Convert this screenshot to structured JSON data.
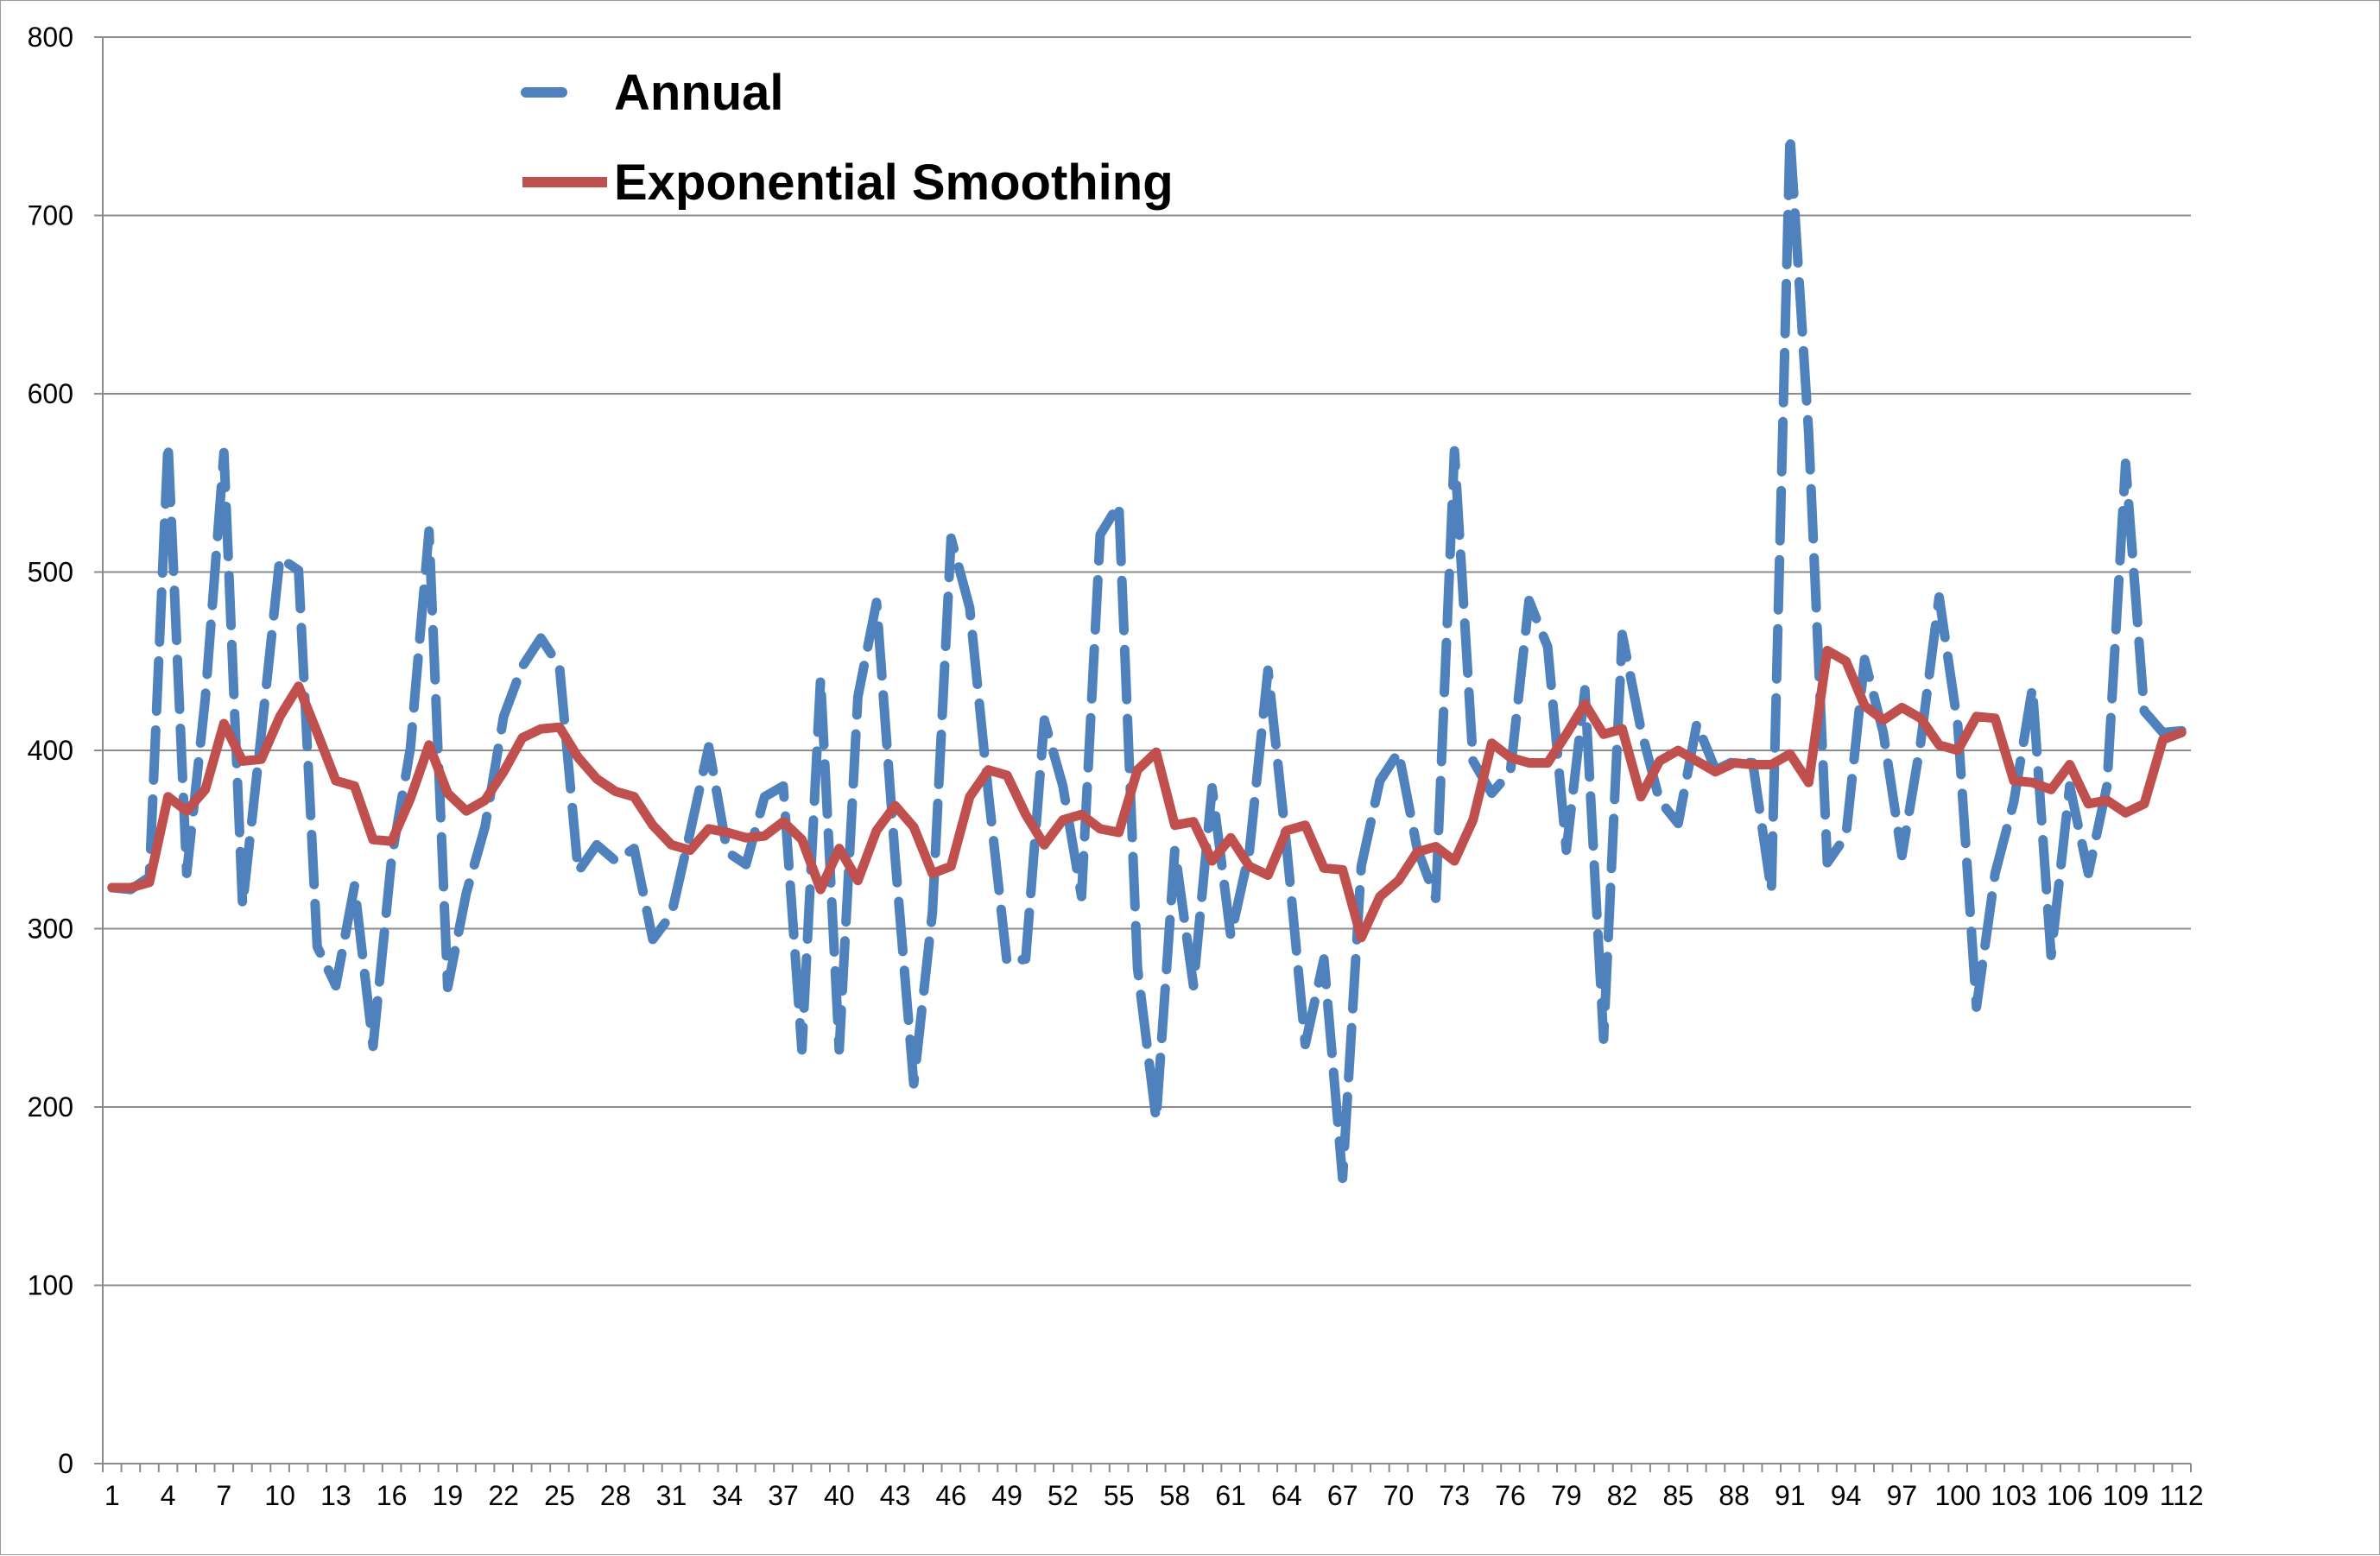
{
  "chart_data": {
    "type": "line",
    "title": "",
    "xlabel": "",
    "ylabel": "",
    "ylim": [
      0,
      800
    ],
    "y_ticks": [
      0,
      100,
      200,
      300,
      400,
      500,
      600,
      700,
      800
    ],
    "x_tick_labels": [
      "1",
      "4",
      "7",
      "10",
      "13",
      "16",
      "19",
      "22",
      "25",
      "28",
      "31",
      "34",
      "37",
      "40",
      "43",
      "46",
      "49",
      "52",
      "55",
      "58",
      "61",
      "64",
      "67",
      "70",
      "73",
      "76",
      "79",
      "82",
      "85",
      "88",
      "91",
      "94",
      "97",
      "100",
      "103",
      "106",
      "109",
      "112"
    ],
    "x_label_every": 3,
    "grid": "horizontal",
    "legend_position": "top-left",
    "series": [
      {
        "name": "Annual",
        "color": "#4F81BD",
        "style": "dashed",
        "values": [
          323,
          322,
          329,
          572,
          331,
          429,
          567,
          313,
          409,
          508,
          501,
          290,
          268,
          324,
          234,
          340,
          401,
          523,
          267,
          320,
          357,
          419,
          447,
          463,
          447,
          332,
          347,
          338,
          345,
          294,
          308,
          354,
          402,
          343,
          336,
          374,
          380,
          232,
          440,
          232,
          430,
          483,
          340,
          213,
          309,
          519,
          480,
          376,
          281,
          283,
          417,
          380,
          318,
          521,
          538,
          278,
          193,
          344,
          268,
          379,
          296,
          343,
          445,
          346,
          235,
          283,
          160,
          335,
          383,
          399,
          345,
          317,
          568,
          394,
          376,
          388,
          484,
          458,
          344,
          434,
          238,
          465,
          412,
          372,
          359,
          415,
          389,
          394,
          393,
          321,
          745,
          578,
          337,
          352,
          451,
          410,
          341,
          404,
          486,
          414,
          256,
          331,
          371,
          435,
          285,
          380,
          331,
          380,
          561,
          422,
          410,
          411
        ]
      },
      {
        "name": "Exponential Smoothing",
        "color": "#C0504D",
        "style": "solid",
        "values": [
          323,
          323,
          326,
          374,
          366,
          378,
          415,
          394,
          395,
          419,
          436,
          410,
          383,
          380,
          350,
          349,
          373,
          403,
          376,
          366,
          372,
          388,
          407,
          412,
          413,
          396,
          384,
          377,
          374,
          358,
          347,
          344,
          356,
          354,
          351,
          352,
          360,
          350,
          322,
          345,
          327,
          355,
          369,
          357,
          331,
          335,
          374,
          389,
          386,
          364,
          347,
          361,
          364,
          356,
          354,
          389,
          399,
          358,
          360,
          338,
          351,
          335,
          330,
          355,
          358,
          334,
          333,
          295,
          318,
          327,
          343,
          346,
          338,
          361,
          404,
          396,
          393,
          393,
          409,
          426,
          409,
          412,
          374,
          394,
          400,
          394,
          388,
          393,
          392,
          392,
          398,
          382,
          456,
          450,
          425,
          417,
          424,
          418,
          403,
          400,
          419,
          418,
          383,
          382,
          378,
          392,
          370,
          372,
          365,
          370,
          406,
          410
        ]
      }
    ]
  }
}
